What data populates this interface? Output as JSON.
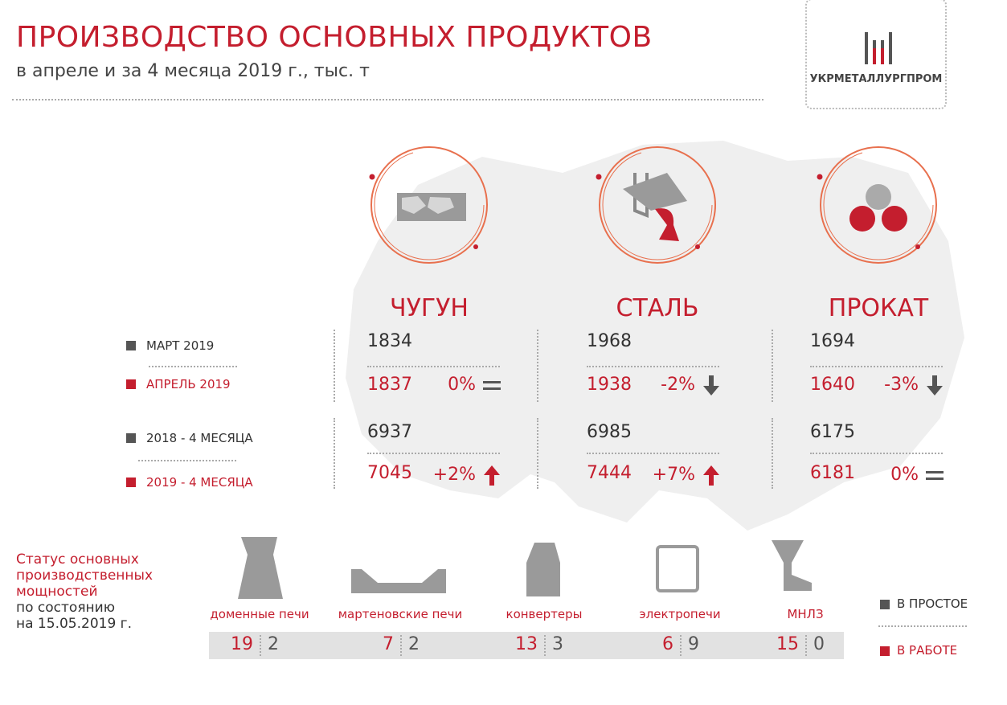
{
  "header": {
    "title": "ПРОИЗВОДСТВО ОСНОВНЫХ ПРОДУКТОВ",
    "subtitle": "в апреле и за 4 месяца 2019 г., тыс. т"
  },
  "logo": {
    "text": "УКРМЕТАЛЛУРГПРОМ"
  },
  "legend": [
    "МАРТ 2019",
    "АПРЕЛЬ 2019",
    "2018 - 4 МЕСЯЦА",
    "2019 - 4 МЕСЯЦА"
  ],
  "products": [
    {
      "name": "ЧУГУН",
      "march": 1834,
      "april": 1837,
      "april_change": "0%",
      "months_2018": 6937,
      "months_2019": 7045,
      "months_change": "+2%"
    },
    {
      "name": "СТАЛЬ",
      "march": 1968,
      "april": 1938,
      "april_change": "-2%",
      "months_2018": 6985,
      "months_2019": 7444,
      "months_change": "+7%"
    },
    {
      "name": "ПРОКАТ",
      "march": 1694,
      "april": 1640,
      "april_change": "-3%",
      "months_2018": 6175,
      "months_2019": 6181,
      "months_change": "0%"
    }
  ],
  "status": {
    "title": [
      "Статус основных",
      "производственных",
      "мощностей"
    ],
    "date": [
      "по состоянию",
      "на 15.05.2019 г."
    ],
    "facilities": [
      {
        "name": "доменные печи",
        "working": 19,
        "idle": 2
      },
      {
        "name": "мартеновские печи",
        "working": 7,
        "idle": 2
      },
      {
        "name": "конвертеры",
        "working": 13,
        "idle": 3
      },
      {
        "name": "электропечи",
        "working": 6,
        "idle": 9
      },
      {
        "name": "МНЛЗ",
        "working": 15,
        "idle": 0
      }
    ],
    "legend": {
      "idle": "В ПРОСТОЕ",
      "working": "В РАБОТЕ"
    }
  }
}
